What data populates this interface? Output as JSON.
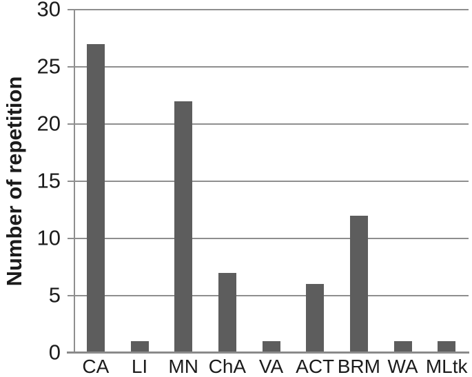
{
  "chart_data": {
    "type": "bar",
    "categories": [
      "CA",
      "LI",
      "MN",
      "ChA",
      "VA",
      "ACT",
      "BRM",
      "WA",
      "MLtk"
    ],
    "values": [
      27,
      1,
      22,
      7,
      1,
      6,
      12,
      1,
      1
    ],
    "title": "",
    "xlabel": "",
    "ylabel": "Number of repetition",
    "ylim": [
      0,
      30
    ],
    "yticks": [
      0,
      5,
      10,
      15,
      20,
      25,
      30
    ],
    "grid": true,
    "legend": "none",
    "colors": {
      "bar": "#5d5d5d",
      "gridline": "#8e8e8e",
      "axis": "#8a8a8a",
      "text": "#1b1b1b",
      "background": "#ffffff"
    }
  }
}
